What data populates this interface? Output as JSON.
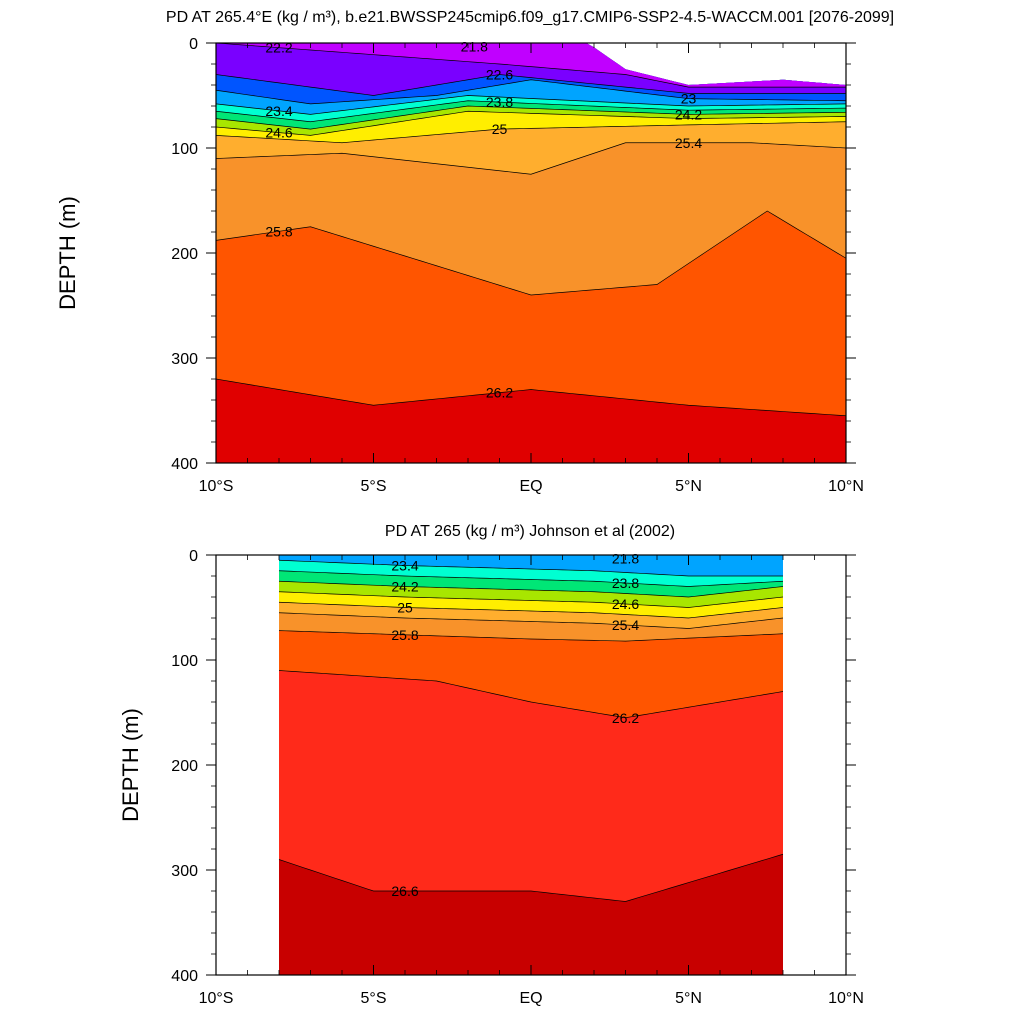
{
  "chart_data": [
    {
      "type": "heatmap",
      "title": "PD AT 265.4°E (kg / m³), b.e21.BWSSP245cmip6.f09_g17.CMIP6-SSP2-4.5-WACCM.001 [2076-2099]",
      "xlabel": "",
      "ylabel": "DEPTH (m)",
      "xlim": [
        -10,
        10
      ],
      "ylim": [
        400,
        0
      ],
      "x_ticks": [
        -10,
        -5,
        0,
        5,
        10
      ],
      "x_tick_labels": [
        "10°S",
        "5°S",
        "EQ",
        "5°N",
        "10°N"
      ],
      "y_ticks": [
        0,
        100,
        200,
        300,
        400
      ],
      "y_tick_labels": [
        "0",
        "100",
        "200",
        "300",
        "400"
      ],
      "x_data_range": [
        -10,
        10
      ],
      "surface_depth": [
        [
          -10,
          0
        ],
        [
          -3,
          0
        ],
        [
          1.8,
          0
        ],
        [
          3,
          25
        ],
        [
          5,
          40
        ],
        [
          8,
          35
        ],
        [
          10,
          40
        ]
      ],
      "isopycnals": [
        {
          "level": 22.2,
          "depth": [
            [
              -10,
              0
            ],
            [
              -1,
              20
            ],
            [
              3,
              30
            ],
            [
              5,
              42
            ],
            [
              10,
              42
            ]
          ]
        },
        {
          "level": 22.6,
          "depth": [
            [
              -10,
              30
            ],
            [
              -5,
              50
            ],
            [
              -1,
              30
            ],
            [
              5,
              48
            ],
            [
              10,
              48
            ]
          ]
        },
        {
          "level": 23.0,
          "depth": [
            [
              -10,
              45
            ],
            [
              -7,
              58
            ],
            [
              -3,
              50
            ],
            [
              0,
              35
            ],
            [
              5,
              53
            ],
            [
              10,
              55
            ]
          ]
        },
        {
          "level": 23.4,
          "depth": [
            [
              -10,
              58
            ],
            [
              -7,
              68
            ],
            [
              -2,
              50
            ],
            [
              5,
              60
            ],
            [
              10,
              58
            ]
          ]
        },
        {
          "level": 23.8,
          "depth": [
            [
              -10,
              65
            ],
            [
              -7,
              75
            ],
            [
              -2,
              55
            ],
            [
              5,
              64
            ],
            [
              10,
              62
            ]
          ]
        },
        {
          "level": 24.2,
          "depth": [
            [
              -10,
              72
            ],
            [
              -7,
              82
            ],
            [
              -2,
              60
            ],
            [
              5,
              68
            ],
            [
              10,
              66
            ]
          ]
        },
        {
          "level": 24.6,
          "depth": [
            [
              -10,
              80
            ],
            [
              -7,
              88
            ],
            [
              -2,
              65
            ],
            [
              5,
              72
            ],
            [
              10,
              70
            ]
          ]
        },
        {
          "level": 25.0,
          "depth": [
            [
              -10,
              88
            ],
            [
              -6,
              95
            ],
            [
              -1,
              82
            ],
            [
              5,
              78
            ],
            [
              10,
              75
            ]
          ]
        },
        {
          "level": 25.4,
          "depth": [
            [
              -10,
              110
            ],
            [
              -6,
              105
            ],
            [
              0,
              125
            ],
            [
              3,
              95
            ],
            [
              7,
              95
            ],
            [
              10,
              100
            ]
          ]
        },
        {
          "level": 25.8,
          "depth": [
            [
              -10,
              188
            ],
            [
              -7,
              175
            ],
            [
              0,
              240
            ],
            [
              4,
              230
            ],
            [
              7.5,
              160
            ],
            [
              10,
              205
            ]
          ]
        },
        {
          "level": 26.2,
          "depth": [
            [
              -10,
              320
            ],
            [
              -5,
              345
            ],
            [
              0,
              330
            ],
            [
              5,
              345
            ],
            [
              10,
              355
            ]
          ]
        }
      ],
      "contour_labels": [
        "21.8",
        "22.2",
        "22.6",
        "23",
        "23.4",
        "23.8",
        "24.2",
        "24.6",
        "25",
        "25.4",
        "25.8",
        "26.2"
      ]
    },
    {
      "type": "heatmap",
      "title": "PD AT 265 (kg / m³) Johnson et al (2002)",
      "xlabel": "",
      "ylabel": "DEPTH (m)",
      "xlim": [
        -10,
        10
      ],
      "ylim": [
        400,
        0
      ],
      "x_ticks": [
        -10,
        -5,
        0,
        5,
        10
      ],
      "x_tick_labels": [
        "10°S",
        "5°S",
        "EQ",
        "5°N",
        "10°N"
      ],
      "y_ticks": [
        0,
        100,
        200,
        300,
        400
      ],
      "y_tick_labels": [
        "0",
        "100",
        "200",
        "300",
        "400"
      ],
      "x_data_range": [
        -8,
        8
      ],
      "isopycnals": [
        {
          "level": 23.4,
          "depth": [
            [
              -8,
              5
            ],
            [
              -4,
              10
            ],
            [
              2,
              15
            ],
            [
              5,
              20
            ],
            [
              8,
              20
            ]
          ]
        },
        {
          "level": 23.8,
          "depth": [
            [
              -8,
              15
            ],
            [
              -4,
              20
            ],
            [
              2,
              25
            ],
            [
              5,
              30
            ],
            [
              8,
              25
            ]
          ]
        },
        {
          "level": 24.2,
          "depth": [
            [
              -8,
              25
            ],
            [
              -4,
              30
            ],
            [
              2,
              35
            ],
            [
              5,
              40
            ],
            [
              8,
              30
            ]
          ]
        },
        {
          "level": 24.6,
          "depth": [
            [
              -8,
              35
            ],
            [
              -4,
              40
            ],
            [
              2,
              45
            ],
            [
              5,
              50
            ],
            [
              8,
              40
            ]
          ]
        },
        {
          "level": 25.0,
          "depth": [
            [
              -8,
              45
            ],
            [
              -4,
              50
            ],
            [
              2,
              55
            ],
            [
              5,
              60
            ],
            [
              8,
              50
            ]
          ]
        },
        {
          "level": 25.4,
          "depth": [
            [
              -8,
              55
            ],
            [
              -4,
              60
            ],
            [
              2,
              65
            ],
            [
              5,
              70
            ],
            [
              8,
              60
            ]
          ]
        },
        {
          "level": 25.8,
          "depth": [
            [
              -8,
              72
            ],
            [
              -5,
              75
            ],
            [
              0,
              80
            ],
            [
              3,
              82
            ],
            [
              8,
              75
            ]
          ]
        },
        {
          "level": 26.2,
          "depth": [
            [
              -8,
              110
            ],
            [
              -3,
              120
            ],
            [
              0,
              140
            ],
            [
              3,
              155
            ],
            [
              8,
              130
            ]
          ]
        },
        {
          "level": 26.6,
          "depth": [
            [
              -8,
              290
            ],
            [
              -5,
              320
            ],
            [
              0,
              320
            ],
            [
              3,
              330
            ],
            [
              8,
              285
            ]
          ]
        }
      ],
      "contour_labels": [
        "21.8",
        "23.4",
        "23.8",
        "24.2",
        "24.6",
        "25",
        "25.4",
        "25.8",
        "26.2",
        "26.6"
      ]
    }
  ],
  "colors": {
    "level_colors": [
      "#6e6e6e",
      "#a8a8a8",
      "#c000ff",
      "#7a00ff",
      "#1c00ff",
      "#0055ff",
      "#00a4ff",
      "#00d6ff",
      "#00ffd2",
      "#00e676",
      "#4cd800",
      "#a8e600",
      "#ffee00",
      "#ffc800",
      "#ffae2e",
      "#f8922a",
      "#f37300",
      "#ff5500",
      "#ff2a1a",
      "#e00000",
      "#c80000"
    ]
  }
}
